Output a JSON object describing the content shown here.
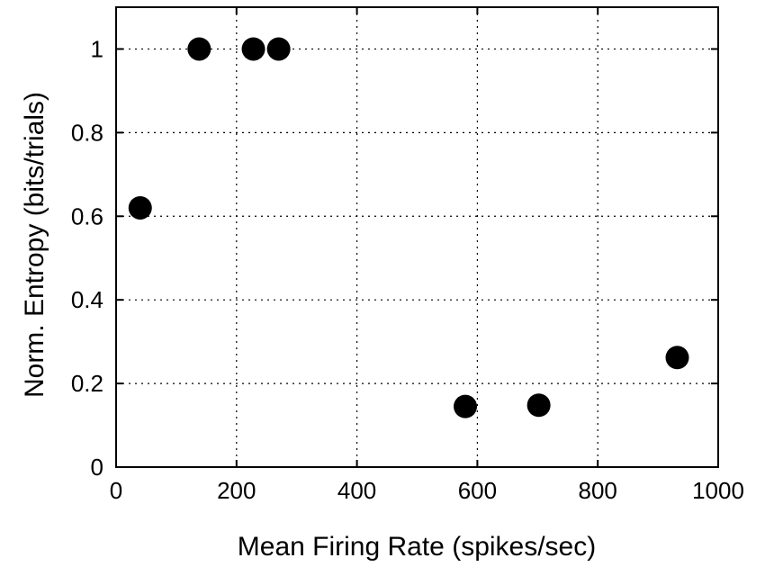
{
  "chart_data": {
    "type": "scatter",
    "xlabel": "Mean Firing Rate (spikes/sec)",
    "ylabel": "Norm. Entropy (bits/trials)",
    "xlim": [
      0,
      1000
    ],
    "ylim": [
      0,
      1.1
    ],
    "xticks": [
      0,
      200,
      400,
      600,
      800,
      1000
    ],
    "yticks": [
      0,
      0.2,
      0.4,
      0.6,
      0.8,
      1
    ],
    "xtick_labels": [
      "0",
      "200",
      "400",
      "600",
      "800",
      "1000"
    ],
    "ytick_labels": [
      "0",
      "0.2",
      "0.4",
      "0.6",
      "0.8",
      "1"
    ],
    "grid": true,
    "series": [
      {
        "x": [
          40,
          138,
          228,
          270,
          580,
          702,
          932
        ],
        "y": [
          0.62,
          1.0,
          1.0,
          1.0,
          0.145,
          0.148,
          0.262
        ]
      }
    ],
    "marker_color": "#000000"
  }
}
